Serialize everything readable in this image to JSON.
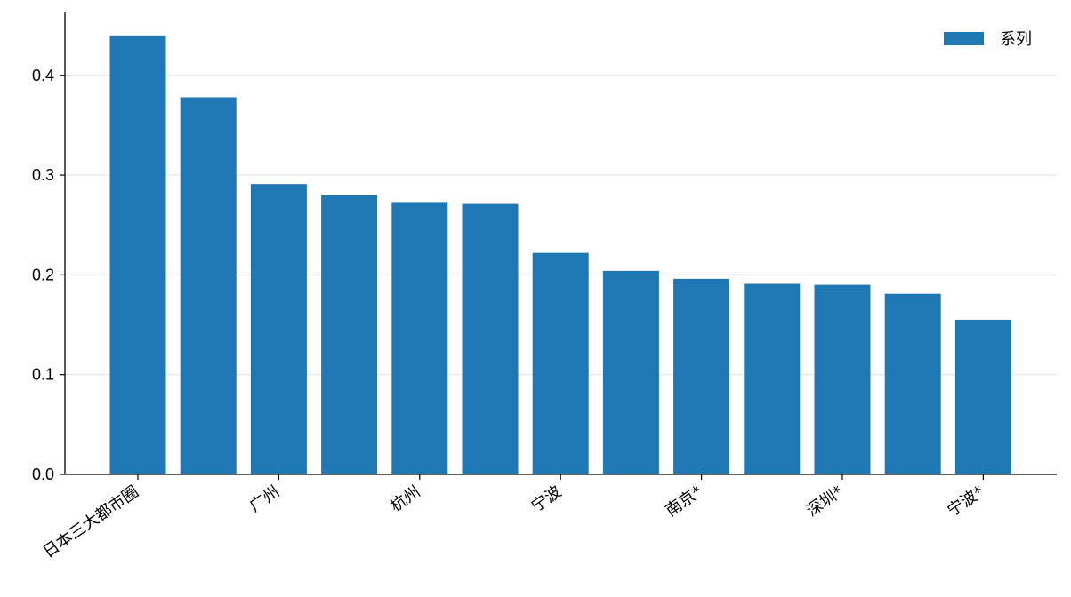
{
  "chart_data": {
    "type": "bar",
    "categories": [
      "日本三大都市圈",
      "",
      "广州",
      "",
      "杭州",
      "",
      "宁波",
      "",
      "南京*",
      "",
      "深圳*",
      "",
      "宁波*"
    ],
    "series": [
      {
        "name": "系列",
        "values": [
          0.44,
          0.378,
          0.291,
          0.28,
          0.273,
          0.271,
          0.222,
          0.204,
          0.196,
          0.191,
          0.19,
          0.181,
          0.155
        ],
        "color": "#1f77b4"
      }
    ],
    "yticks": [
      "0.0",
      "0.1",
      "0.2",
      "0.3",
      "0.4"
    ],
    "ylim": [
      0,
      0.463
    ],
    "grid": "y",
    "legend": "top-right"
  }
}
